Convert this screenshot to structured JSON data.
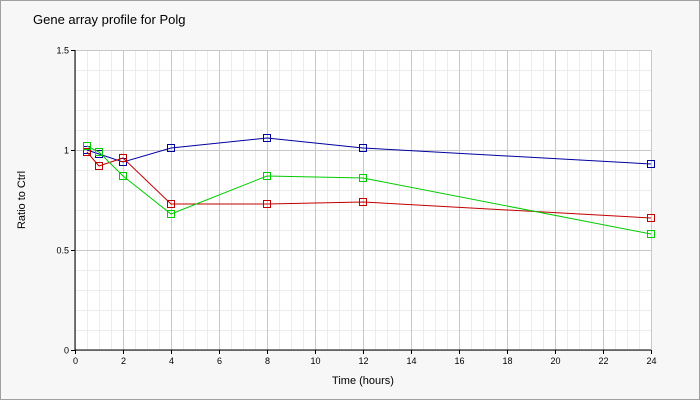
{
  "chart_data": {
    "type": "line",
    "title": "Gene array profile for Polg",
    "xlabel": "Time (hours)",
    "ylabel": "Ratio to Ctrl",
    "xlim": [
      0,
      24
    ],
    "ylim": [
      0,
      1.5
    ],
    "x_ticks": [
      "0",
      "2",
      "4",
      "6",
      "8",
      "10",
      "12",
      "14",
      "16",
      "18",
      "20",
      "22",
      "24"
    ],
    "y_ticks": [
      "0",
      "0.5",
      "1",
      "1.5"
    ],
    "grid": true,
    "legend": false,
    "x": [
      0.5,
      1,
      2,
      4,
      8,
      12,
      24
    ],
    "series": [
      {
        "color": "#0000a0",
        "values": [
          1.0,
          0.98,
          0.94,
          1.01,
          1.06,
          1.01,
          0.93
        ]
      },
      {
        "color": "#c00000",
        "values": [
          0.99,
          0.92,
          0.96,
          0.73,
          0.73,
          0.74,
          0.66
        ]
      },
      {
        "color": "#00cc00",
        "values": [
          1.02,
          0.99,
          0.87,
          0.68,
          0.87,
          0.86,
          0.58
        ]
      }
    ]
  }
}
